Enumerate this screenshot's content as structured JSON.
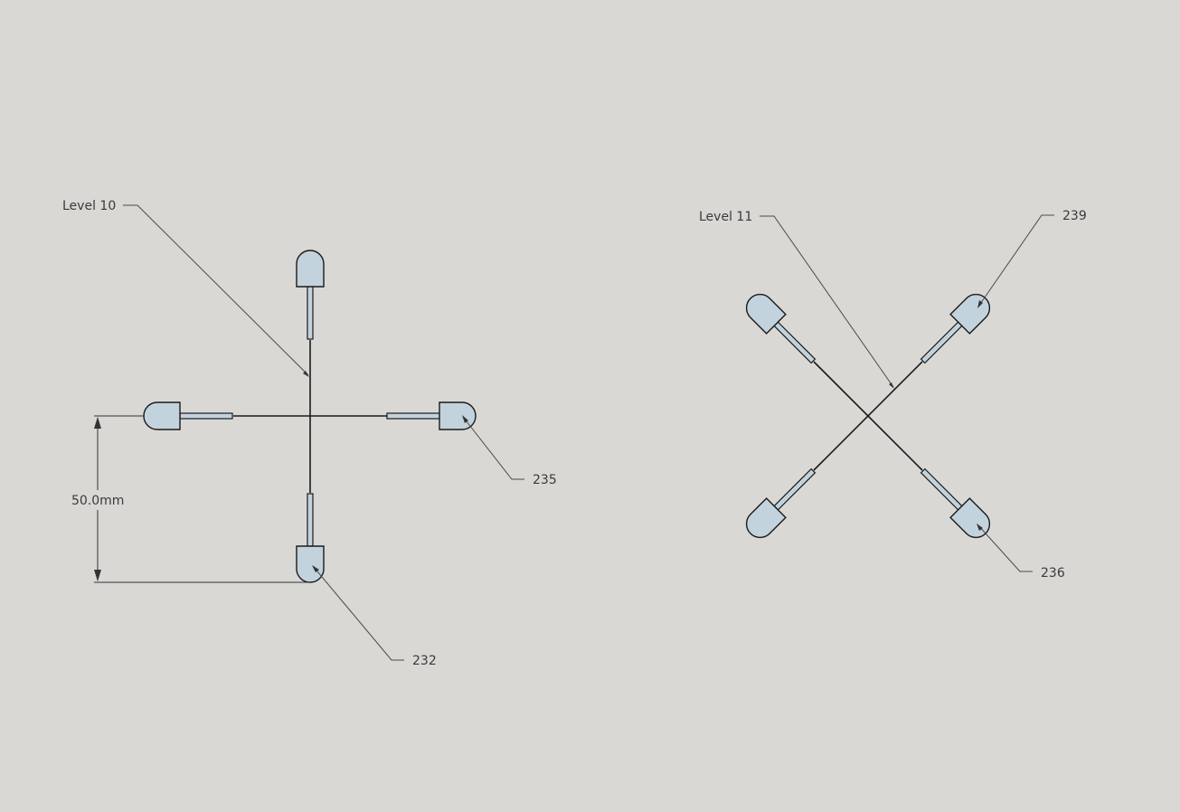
{
  "diagram": {
    "levels": [
      {
        "label": "Level 10"
      },
      {
        "label": "Level 11"
      }
    ],
    "callouts": [
      {
        "label": "235"
      },
      {
        "label": "232"
      },
      {
        "label": "239"
      },
      {
        "label": "236"
      }
    ],
    "dimension": {
      "label": "50.0mm"
    }
  },
  "colors": {
    "background": "#d9d8d4",
    "led_fill": "#c3d3dd",
    "line": "#1a1a1a"
  }
}
